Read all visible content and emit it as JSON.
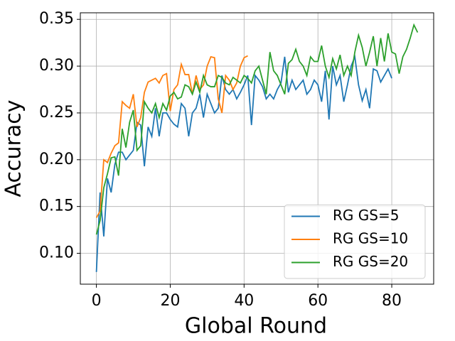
{
  "chart_data": {
    "type": "line",
    "xlabel": "Global Round",
    "ylabel": "Accuracy",
    "x": [
      0,
      1,
      2,
      3,
      4,
      5,
      6,
      7,
      8,
      9,
      10,
      11,
      12,
      13,
      14,
      15,
      16,
      17,
      18,
      19,
      20,
      21,
      22,
      23,
      24,
      25,
      26,
      27,
      28,
      29,
      30,
      31,
      32,
      33,
      34,
      35,
      36,
      37,
      38,
      39,
      40,
      41,
      42,
      43,
      44,
      45,
      46,
      47,
      48,
      49,
      50,
      51,
      52,
      53,
      54,
      55,
      56,
      57,
      58,
      59,
      60,
      61,
      62,
      63,
      64,
      65,
      66,
      67,
      68,
      69,
      70,
      71,
      72,
      73,
      74,
      75,
      76,
      77,
      78,
      79,
      80,
      81,
      82,
      83,
      84,
      85,
      86,
      87
    ],
    "series": [
      {
        "name": "RG GS=5",
        "color": "#1f77b4",
        "values": [
          0.08,
          0.165,
          0.118,
          0.18,
          0.165,
          0.195,
          0.208,
          0.208,
          0.2,
          0.205,
          0.21,
          0.24,
          0.237,
          0.193,
          0.235,
          0.225,
          0.255,
          0.225,
          0.25,
          0.25,
          0.243,
          0.238,
          0.235,
          0.26,
          0.255,
          0.225,
          0.25,
          0.255,
          0.27,
          0.245,
          0.27,
          0.26,
          0.25,
          0.255,
          0.29,
          0.275,
          0.27,
          0.275,
          0.265,
          0.272,
          0.28,
          0.29,
          0.237,
          0.29,
          0.285,
          0.278,
          0.265,
          0.27,
          0.265,
          0.275,
          0.282,
          0.31,
          0.272,
          0.285,
          0.275,
          0.28,
          0.285,
          0.27,
          0.275,
          0.285,
          0.28,
          0.262,
          0.295,
          0.243,
          0.3,
          0.28,
          0.29,
          0.262,
          0.28,
          0.3,
          0.31,
          0.28,
          0.263,
          0.275,
          0.255,
          0.297,
          0.295,
          0.283,
          0.29,
          0.297,
          0.287,
          null,
          null,
          null,
          null,
          null,
          null,
          null
        ]
      },
      {
        "name": "RG GS=10",
        "color": "#ff7f0e",
        "values": [
          0.138,
          0.145,
          0.2,
          0.197,
          0.207,
          0.215,
          0.218,
          0.262,
          0.258,
          0.255,
          0.27,
          0.235,
          0.245,
          0.272,
          0.283,
          0.285,
          0.287,
          0.282,
          0.29,
          0.292,
          0.252,
          0.275,
          0.28,
          0.302,
          0.291,
          0.291,
          0.27,
          0.29,
          0.275,
          0.28,
          0.3,
          0.31,
          0.309,
          0.265,
          0.25,
          0.29,
          0.285,
          0.275,
          0.282,
          0.3,
          0.309,
          0.311,
          null,
          null,
          null,
          null,
          null,
          null,
          null,
          null,
          null,
          null,
          null,
          null,
          null,
          null,
          null,
          null,
          null,
          null,
          null,
          null,
          null,
          null,
          null,
          null,
          null,
          null,
          null,
          null,
          null,
          null,
          null,
          null,
          null,
          null,
          null,
          null,
          null,
          null,
          null,
          null,
          null,
          null,
          null,
          null,
          null,
          null
        ]
      },
      {
        "name": "RG GS=20",
        "color": "#2ca02c",
        "values": [
          0.12,
          0.135,
          0.17,
          0.185,
          0.202,
          0.203,
          0.183,
          0.233,
          0.213,
          0.24,
          0.253,
          0.21,
          0.215,
          0.262,
          0.255,
          0.25,
          0.26,
          0.245,
          0.26,
          0.253,
          0.268,
          0.272,
          0.265,
          0.267,
          0.28,
          0.278,
          0.27,
          0.283,
          0.272,
          0.29,
          0.28,
          0.278,
          0.278,
          0.29,
          0.288,
          0.282,
          0.28,
          0.288,
          0.285,
          0.282,
          0.29,
          0.287,
          0.282,
          0.295,
          0.3,
          0.285,
          0.27,
          0.315,
          0.295,
          0.29,
          0.28,
          0.27,
          0.303,
          0.307,
          0.318,
          0.305,
          0.3,
          0.29,
          0.31,
          0.305,
          0.305,
          0.322,
          0.3,
          0.288,
          0.308,
          0.297,
          0.312,
          0.29,
          0.3,
          0.29,
          0.315,
          0.333,
          0.32,
          0.3,
          0.315,
          0.332,
          0.3,
          0.33,
          0.305,
          0.335,
          0.315,
          0.313,
          0.292,
          0.31,
          0.318,
          0.33,
          0.344,
          0.336
        ]
      }
    ],
    "xlim": [
      -4.35,
      91.35
    ],
    "ylim": [
      0.067,
      0.357
    ],
    "xticks": [
      0,
      20,
      40,
      60,
      80
    ],
    "yticks": [
      {
        "value": 0.1,
        "label": "0.10"
      },
      {
        "value": 0.15,
        "label": "0.15"
      },
      {
        "value": 0.2,
        "label": "0.20"
      },
      {
        "value": 0.25,
        "label": "0.25"
      },
      {
        "value": 0.3,
        "label": "0.30"
      },
      {
        "value": 0.35,
        "label": "0.35"
      }
    ],
    "grid": true,
    "legend": "lower right"
  }
}
